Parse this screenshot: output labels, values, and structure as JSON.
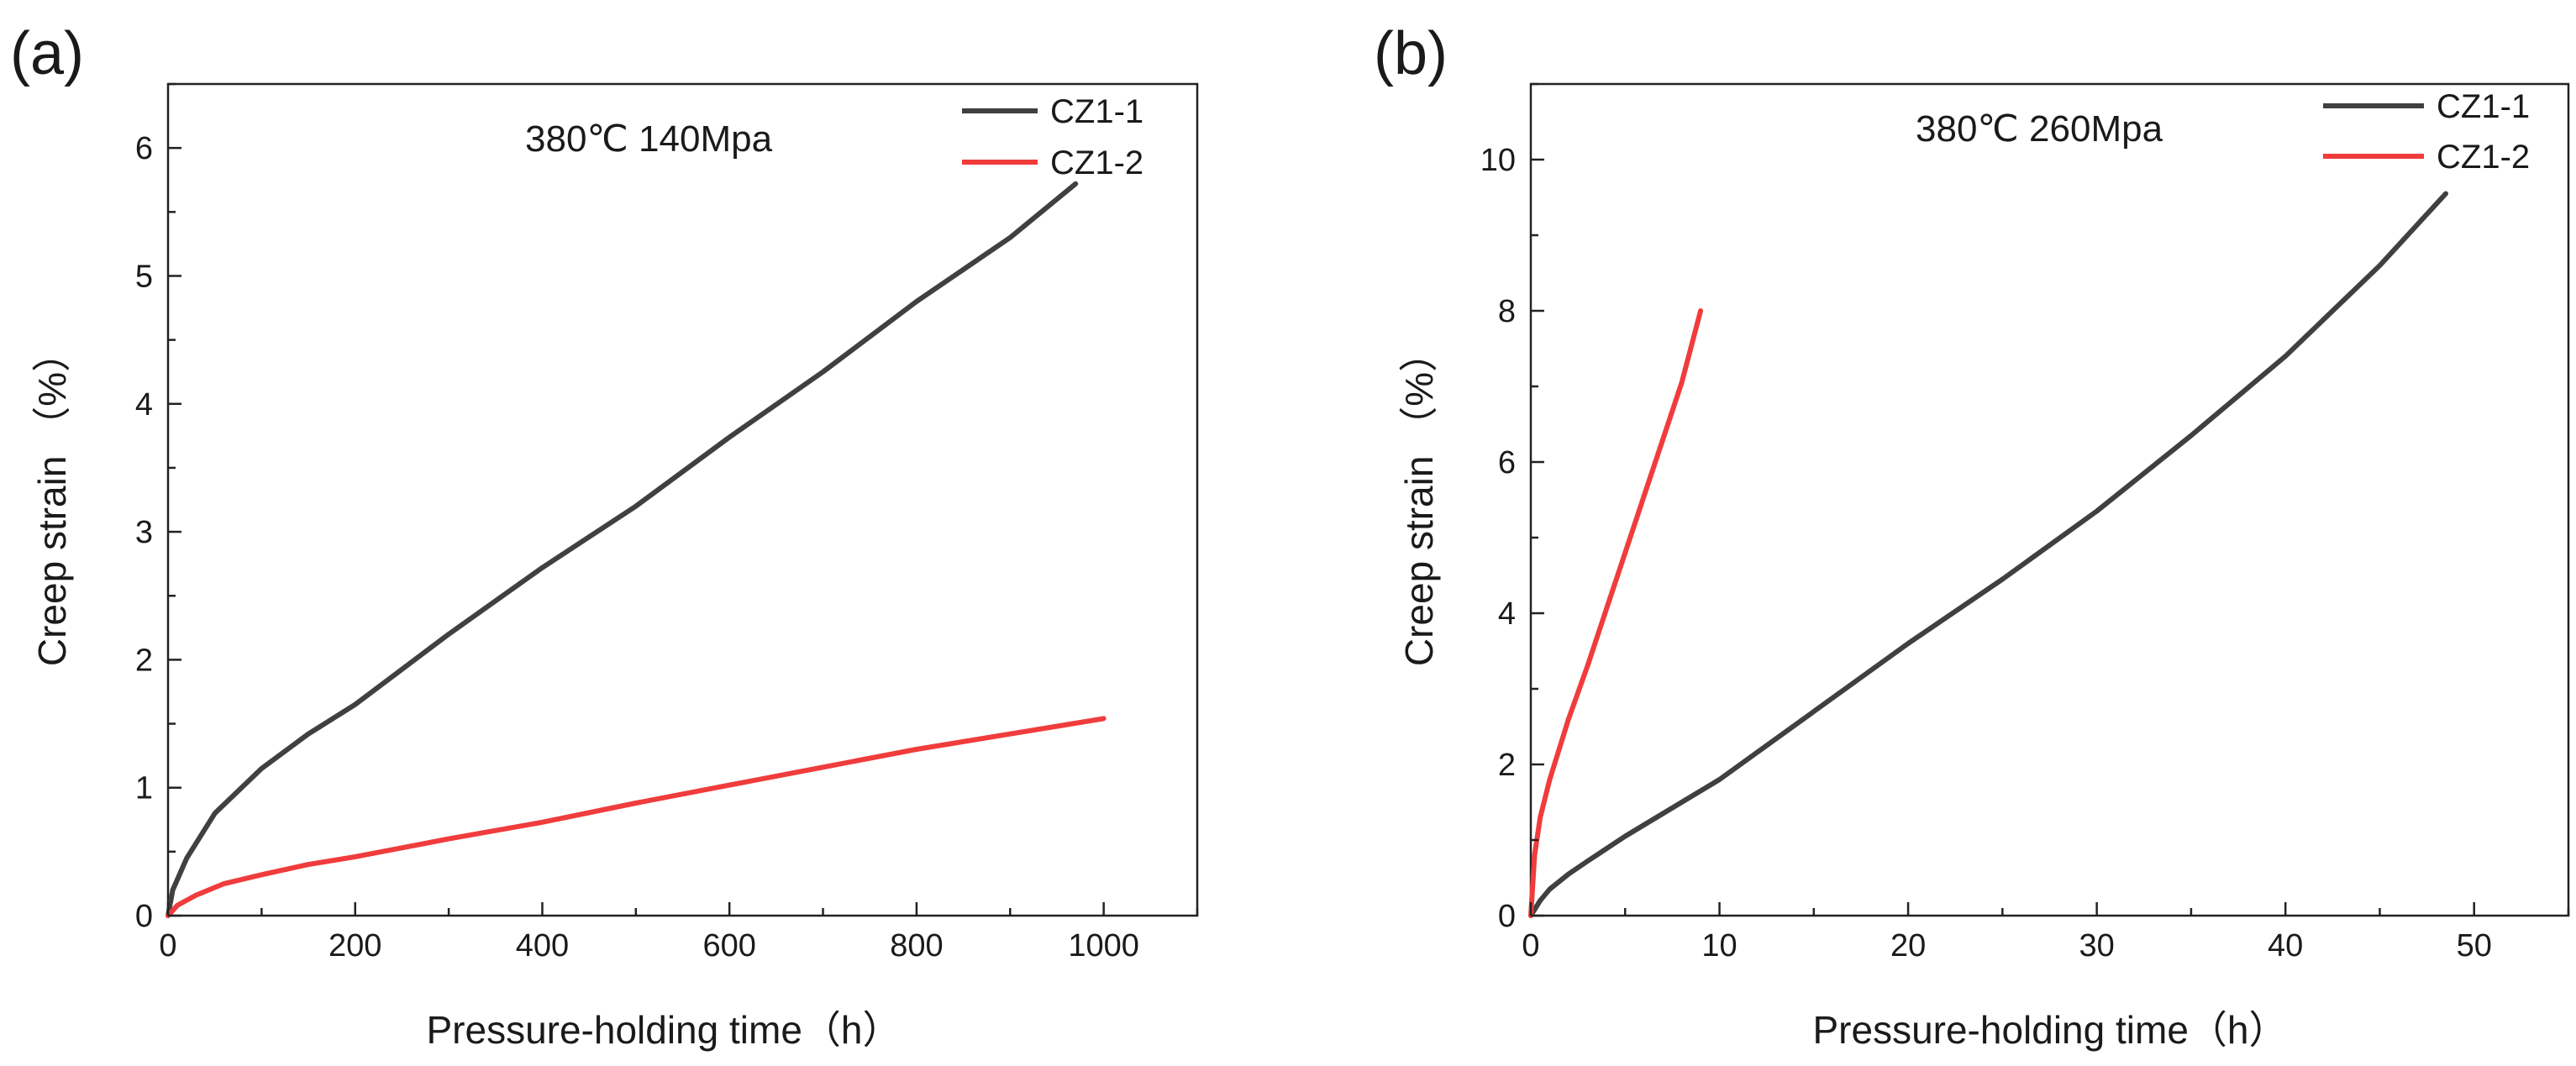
{
  "chart_data": [
    {
      "type": "line",
      "panel_label": "(a)",
      "annotation": "380℃ 140Mpa",
      "xlabel": "Pressure-holding time（h）",
      "ylabel": "Creep strain （%）",
      "xlim": [
        0,
        1100
      ],
      "ylim": [
        0,
        6.5
      ],
      "xticks": [
        0,
        200,
        400,
        600,
        800,
        1000
      ],
      "yticks": [
        0,
        1,
        2,
        3,
        4,
        5,
        6
      ],
      "legend_position": "top-right",
      "series": [
        {
          "name": "CZ1-1",
          "color": "#404040",
          "x": [
            0,
            5,
            20,
            50,
            100,
            150,
            200,
            300,
            400,
            500,
            600,
            700,
            800,
            900,
            970
          ],
          "y": [
            0.0,
            0.2,
            0.45,
            0.8,
            1.15,
            1.42,
            1.65,
            2.2,
            2.72,
            3.2,
            3.74,
            4.25,
            4.8,
            5.3,
            5.72
          ]
        },
        {
          "name": "CZ1-2",
          "color": "#f03c3c",
          "x": [
            0,
            10,
            30,
            60,
            100,
            150,
            200,
            300,
            400,
            500,
            600,
            700,
            800,
            900,
            1000
          ],
          "y": [
            0.0,
            0.08,
            0.16,
            0.25,
            0.32,
            0.4,
            0.46,
            0.6,
            0.73,
            0.88,
            1.02,
            1.16,
            1.3,
            1.42,
            1.54
          ]
        }
      ]
    },
    {
      "type": "line",
      "panel_label": "(b)",
      "annotation": "380℃ 260Mpa",
      "xlabel": "Pressure-holding time（h）",
      "ylabel": "Creep strain （%）",
      "xlim": [
        0,
        55
      ],
      "ylim": [
        0,
        11
      ],
      "xticks": [
        0,
        10,
        20,
        30,
        40,
        50
      ],
      "yticks": [
        0,
        2,
        4,
        6,
        8,
        10
      ],
      "legend_position": "top-right",
      "series": [
        {
          "name": "CZ1-1",
          "color": "#404040",
          "x": [
            0,
            0.5,
            1,
            2,
            3,
            5,
            8,
            10,
            15,
            20,
            25,
            30,
            35,
            40,
            45,
            48.5
          ],
          "y": [
            0.0,
            0.2,
            0.35,
            0.55,
            0.72,
            1.05,
            1.5,
            1.8,
            2.7,
            3.6,
            4.45,
            5.35,
            6.35,
            7.4,
            8.6,
            9.55
          ]
        },
        {
          "name": "CZ1-2",
          "color": "#f03c3c",
          "x": [
            0,
            0.2,
            0.5,
            1,
            2,
            3,
            4,
            5,
            6,
            7,
            8,
            9
          ],
          "y": [
            0.0,
            0.8,
            1.3,
            1.8,
            2.6,
            3.3,
            4.05,
            4.8,
            5.55,
            6.3,
            7.05,
            8.0
          ]
        }
      ]
    }
  ]
}
